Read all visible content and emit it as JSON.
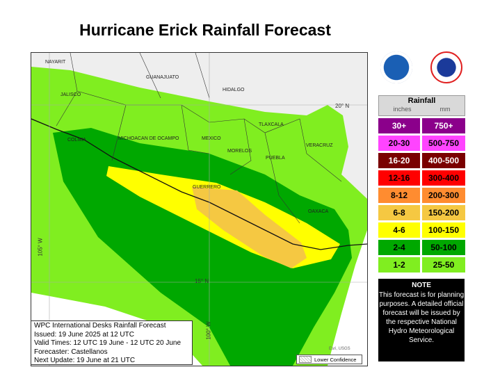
{
  "title": "Hurricane Erick Rainfall Forecast",
  "map": {
    "states": [
      "NAYARIT",
      "JALISCO",
      "GUANAJUATO",
      "HIDALGO",
      "COLIMA",
      "MICHOACAN DE OCAMPO",
      "MEXICO",
      "TLAXCALA",
      "MORELOS",
      "VERACRUZ",
      "PUEBLA",
      "GUERRERO",
      "OAXACA"
    ],
    "grid_labels": {
      "lat20": "20° N",
      "lat15": "15° N",
      "lon105": "105° W",
      "lon100": "100° W"
    },
    "attribution": "Esri, USGS"
  },
  "info_box": [
    "WPC International Desks Rainfall Forecast",
    "Issued: 19 June 2025 at 12 UTC",
    "Valid Times: 12 UTC 19 June - 12 UTC 20 June",
    "Forecaster: Castellanos",
    "Next Update: 19 June at 21 UTC"
  ],
  "lower_confidence": "Lower Confidence",
  "logos": {
    "noaa": "NOAA",
    "nws": "NATIONAL WEATHER SERVICE"
  },
  "legend": {
    "title": "Rainfall",
    "unit_in": "inches",
    "unit_mm": "mm",
    "rows": [
      {
        "in": "30+",
        "mm": "750+",
        "color": "#8b008b",
        "text": "#fff"
      },
      {
        "in": "20-30",
        "mm": "500-750",
        "color": "#ff44ff",
        "text": "#000"
      },
      {
        "in": "16-20",
        "mm": "400-500",
        "color": "#7a0000",
        "text": "#fff"
      },
      {
        "in": "12-16",
        "mm": "300-400",
        "color": "#ff0000",
        "text": "#000"
      },
      {
        "in": "8-12",
        "mm": "200-300",
        "color": "#ff8c30",
        "text": "#000"
      },
      {
        "in": "6-8",
        "mm": "150-200",
        "color": "#f5c842",
        "text": "#000"
      },
      {
        "in": "4-6",
        "mm": "100-150",
        "color": "#ffff00",
        "text": "#000"
      },
      {
        "in": "2-4",
        "mm": "50-100",
        "color": "#00a800",
        "text": "#000"
      },
      {
        "in": "1-2",
        "mm": "25-50",
        "color": "#80ee20",
        "text": "#000"
      }
    ]
  },
  "note": {
    "title": "NOTE",
    "text": "This forecast is for planning purposes. A detailed official forecast will be issued by the respective National Hydro Meteorological Service."
  }
}
